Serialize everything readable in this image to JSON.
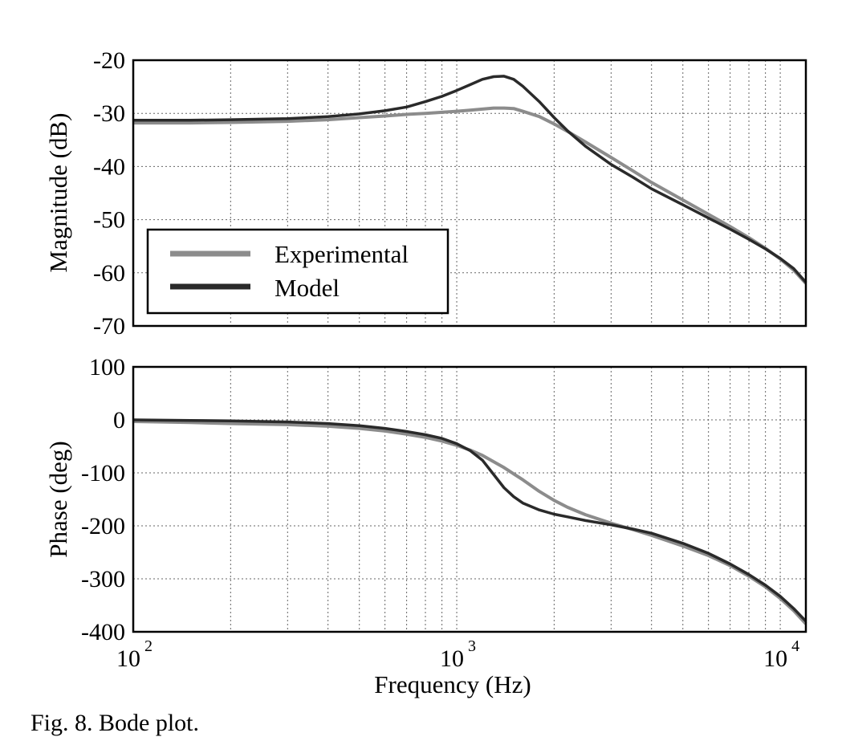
{
  "caption": "Fig. 8.  Bode plot.",
  "chart_data": [
    {
      "type": "line",
      "panel": "magnitude",
      "ylabel": "Magnitude (dB)",
      "xlabel": "",
      "xscale": "log",
      "xlim": [
        100,
        12000
      ],
      "ylim": [
        -70,
        -20
      ],
      "yticks": [
        -20,
        -30,
        -40,
        -50,
        -60,
        -70
      ],
      "grid": true,
      "legend": "bottom-left",
      "x": [
        100,
        150,
        200,
        300,
        400,
        500,
        600,
        700,
        800,
        900,
        1000,
        1100,
        1200,
        1300,
        1400,
        1500,
        1600,
        1800,
        2000,
        2200,
        2500,
        3000,
        3500,
        4000,
        5000,
        6000,
        7000,
        8000,
        9000,
        10000,
        11000,
        12000
      ],
      "series": [
        {
          "name": "Experimental",
          "color": "#8c8c8c",
          "values": [
            -31.8,
            -31.8,
            -31.7,
            -31.5,
            -31.2,
            -30.8,
            -30.5,
            -30.2,
            -30.0,
            -29.8,
            -29.6,
            -29.4,
            -29.2,
            -29.0,
            -29.0,
            -29.1,
            -29.6,
            -30.6,
            -32.0,
            -33.4,
            -35.4,
            -38.3,
            -40.8,
            -43.0,
            -46.3,
            -49.0,
            -51.3,
            -53.4,
            -55.4,
            -57.4,
            -59.5,
            -62.0
          ]
        },
        {
          "name": "Model",
          "color": "#2a2a2a",
          "values": [
            -31.3,
            -31.3,
            -31.2,
            -31.0,
            -30.6,
            -30.1,
            -29.5,
            -28.8,
            -27.8,
            -26.8,
            -25.7,
            -24.6,
            -23.6,
            -23.1,
            -23.0,
            -23.6,
            -24.9,
            -27.8,
            -30.8,
            -33.3,
            -36.2,
            -39.6,
            -42.0,
            -44.2,
            -47.2,
            -49.7,
            -51.8,
            -53.7,
            -55.5,
            -57.3,
            -59.2,
            -61.8
          ]
        }
      ]
    },
    {
      "type": "line",
      "panel": "phase",
      "ylabel": "Phase (deg)",
      "xlabel": "Frequency (Hz)",
      "xscale": "log",
      "xlim": [
        100,
        12000
      ],
      "ylim": [
        -400,
        100
      ],
      "yticks": [
        100,
        0,
        -100,
        -200,
        -300,
        -400
      ],
      "xticks": [
        "10^2",
        "10^3",
        "10^4"
      ],
      "grid": true,
      "x": [
        100,
        150,
        200,
        300,
        400,
        500,
        600,
        700,
        800,
        900,
        1000,
        1100,
        1200,
        1300,
        1400,
        1500,
        1600,
        1800,
        2000,
        2200,
        2500,
        3000,
        3500,
        4000,
        5000,
        6000,
        7000,
        8000,
        9000,
        10000,
        11000,
        12000
      ],
      "series": [
        {
          "name": "Experimental",
          "color": "#8c8c8c",
          "values": [
            -3,
            -5,
            -7,
            -9,
            -12,
            -16,
            -21,
            -27,
            -33,
            -40,
            -48,
            -57,
            -67,
            -79,
            -90,
            -102,
            -113,
            -135,
            -152,
            -165,
            -179,
            -195,
            -207,
            -218,
            -238,
            -256,
            -275,
            -295,
            -315,
            -337,
            -360,
            -385
          ]
        },
        {
          "name": "Model",
          "color": "#2a2a2a",
          "values": [
            0,
            -1,
            -2,
            -4,
            -7,
            -11,
            -16,
            -22,
            -28,
            -35,
            -45,
            -58,
            -76,
            -103,
            -128,
            -145,
            -157,
            -170,
            -178,
            -183,
            -190,
            -198,
            -206,
            -214,
            -233,
            -252,
            -272,
            -292,
            -312,
            -333,
            -356,
            -380
          ]
        }
      ]
    }
  ],
  "axes": {
    "mag_ticks": [
      "-20",
      "-30",
      "-40",
      "-50",
      "-60",
      "-70"
    ],
    "phase_ticks": [
      "100",
      "0",
      "-100",
      "-200",
      "-300",
      "-400"
    ],
    "x_tick_base": "10",
    "x_tick_exps": [
      "2",
      "3",
      "4"
    ]
  }
}
